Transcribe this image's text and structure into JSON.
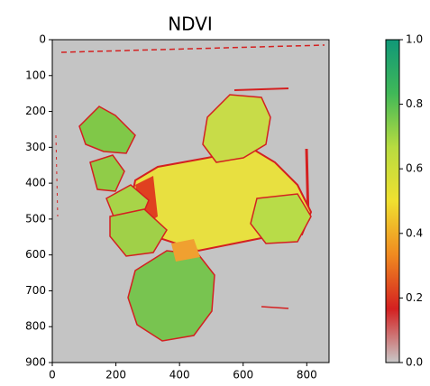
{
  "chart_data": {
    "type": "image",
    "title": "NDVI",
    "xlim": [
      0,
      870
    ],
    "xticks": [
      0,
      200,
      400,
      600,
      800
    ],
    "ylim": [
      900,
      0
    ],
    "yticks": [
      0,
      100,
      200,
      300,
      400,
      500,
      600,
      700,
      800,
      900
    ],
    "colorbar": {
      "clim": [
        0,
        1
      ],
      "ticks": [
        {
          "value": 0,
          "label": "0.0"
        },
        0.2,
        0.4,
        0.6,
        0.8,
        {
          "value": 1,
          "label": "1.0"
        }
      ],
      "colormap": [
        "#c8c8c8",
        "#d42020",
        "#f08a20",
        "#f0e030",
        "#b8dc40",
        "#40b858",
        "#109878"
      ]
    }
  }
}
